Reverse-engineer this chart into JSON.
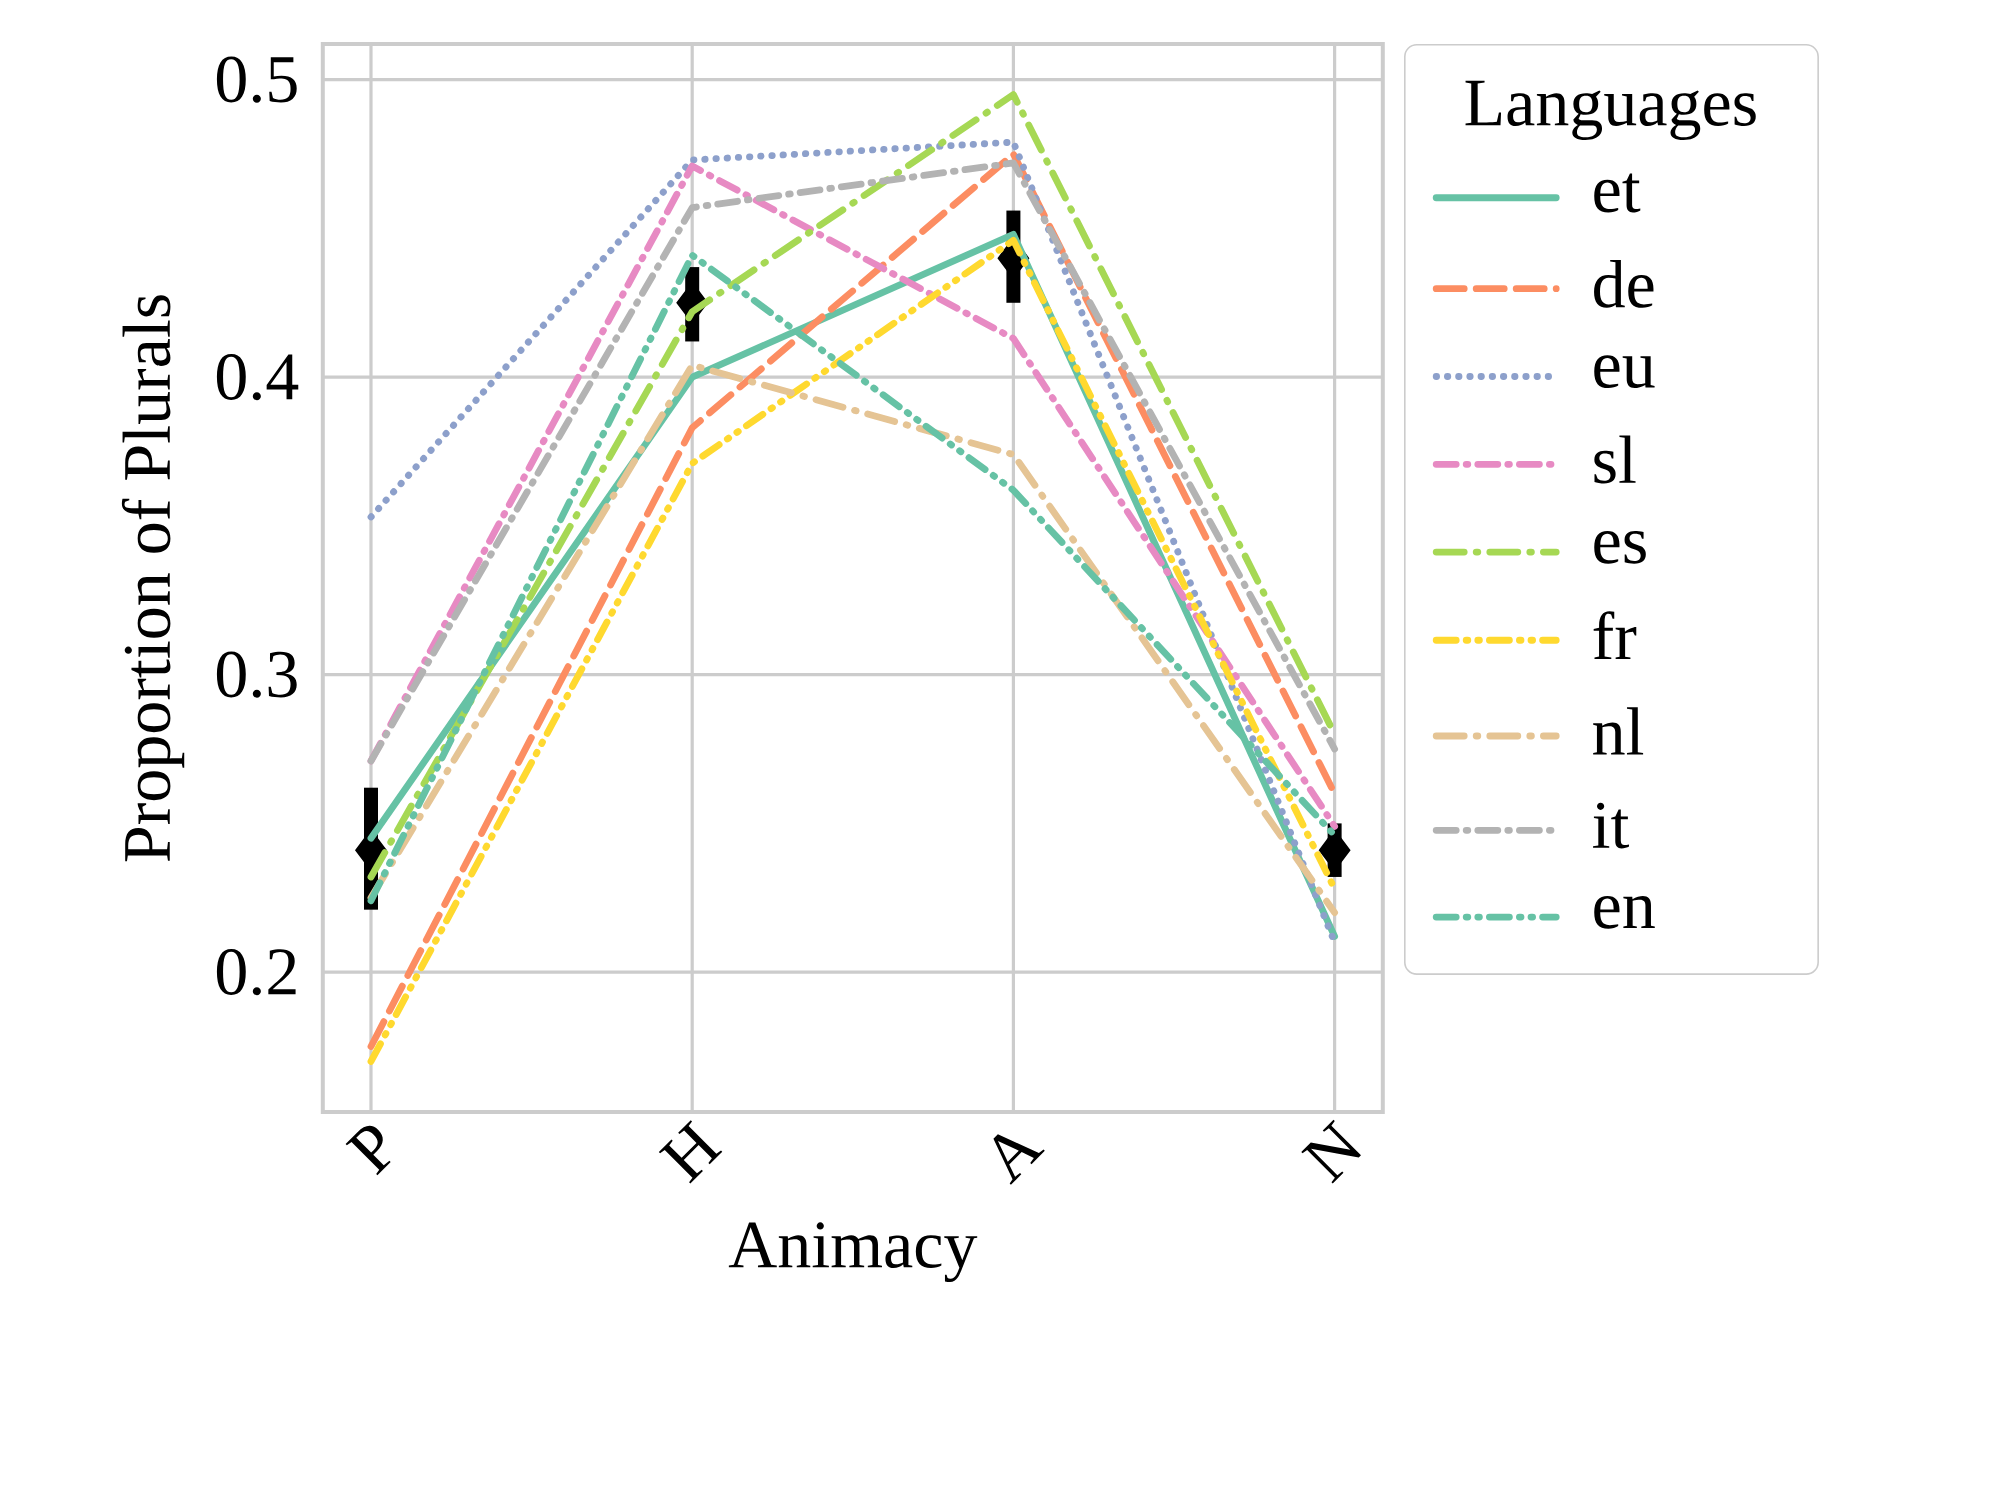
{
  "chart_data": {
    "type": "line",
    "xlabel": "Animacy",
    "ylabel": "Proportion of Plurals",
    "legend_title": "Languages",
    "categories": [
      "P",
      "H",
      "A",
      "N"
    ],
    "ylim": [
      0.153,
      0.512
    ],
    "yticks": [
      0.2,
      0.3,
      0.4,
      0.5
    ],
    "grid": true,
    "legend": "right",
    "series": [
      {
        "name": "et",
        "color": "#66c2a5",
        "line_style": "solid",
        "values": [
          0.245,
          0.4,
          0.448,
          0.212
        ]
      },
      {
        "name": "de",
        "color": "#fc8d62",
        "line_style": "dashed",
        "values": [
          0.175,
          0.383,
          0.475,
          0.26
        ]
      },
      {
        "name": "eu",
        "color": "#8da0cb",
        "line_style": "dotted",
        "values": [
          0.353,
          0.473,
          0.479,
          0.21
        ]
      },
      {
        "name": "sl",
        "color": "#e78ac3",
        "line_style": "dashdot",
        "values": [
          0.271,
          0.471,
          0.413,
          0.249
        ]
      },
      {
        "name": "es",
        "color": "#a6d854",
        "line_style": "longdashdot",
        "values": [
          0.232,
          0.422,
          0.495,
          0.28
        ]
      },
      {
        "name": "fr",
        "color": "#ffd92f",
        "line_style": "dashdotdot",
        "values": [
          0.17,
          0.371,
          0.446,
          0.228
        ]
      },
      {
        "name": "nl",
        "color": "#e5c494",
        "line_style": "longdashdot",
        "values": [
          0.225,
          0.404,
          0.374,
          0.22
        ]
      },
      {
        "name": "it",
        "color": "#b3b3b3",
        "line_style": "dashdot",
        "values": [
          0.271,
          0.457,
          0.472,
          0.275
        ]
      },
      {
        "name": "en",
        "color": "#66c2a5",
        "line_style": "dashdotdot",
        "values": [
          0.224,
          0.441,
          0.362,
          0.246
        ]
      },
      {
        "type": "scatter",
        "color": "#000000",
        "marker": "diamond",
        "values": [
          0.241,
          0.425,
          0.44,
          0.241
        ],
        "errors": [
          [
            0.221,
            0.262
          ],
          [
            0.412,
            0.437
          ],
          [
            0.425,
            0.456
          ],
          [
            0.232,
            0.25
          ]
        ]
      }
    ]
  }
}
